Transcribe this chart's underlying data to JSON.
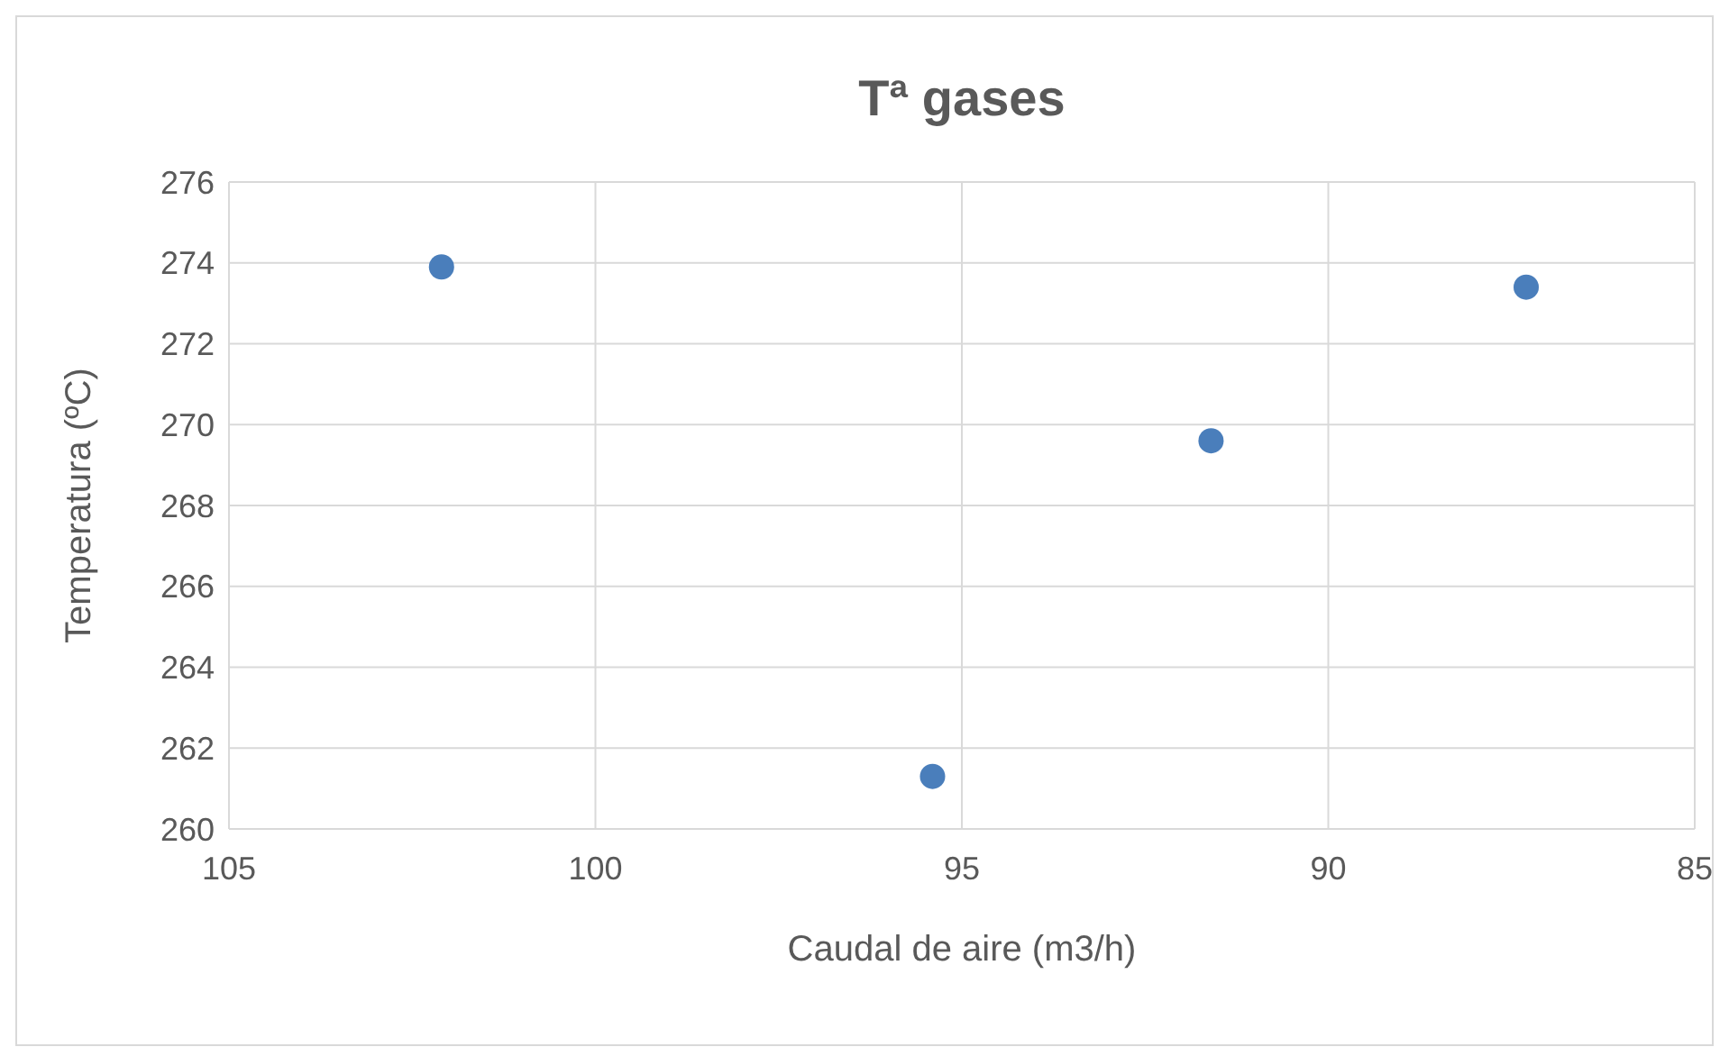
{
  "chart_data": {
    "type": "scatter",
    "title": "Tª gases",
    "xlabel": "Caudal de aire (m3/h)",
    "ylabel": "Temperatura (ºC)",
    "x": [
      102.1,
      95.4,
      91.6,
      87.3
    ],
    "series": [
      {
        "color": "#4a7ebb",
        "values": [
          273.9,
          261.3,
          269.6,
          273.4
        ]
      }
    ],
    "xlim": [
      105,
      85
    ],
    "xticks": [
      105,
      100,
      95,
      90,
      85
    ],
    "ylim": [
      260,
      276
    ],
    "yticks": [
      260,
      262,
      264,
      266,
      268,
      270,
      272,
      274,
      276
    ],
    "grid": true,
    "marker": "circle"
  }
}
